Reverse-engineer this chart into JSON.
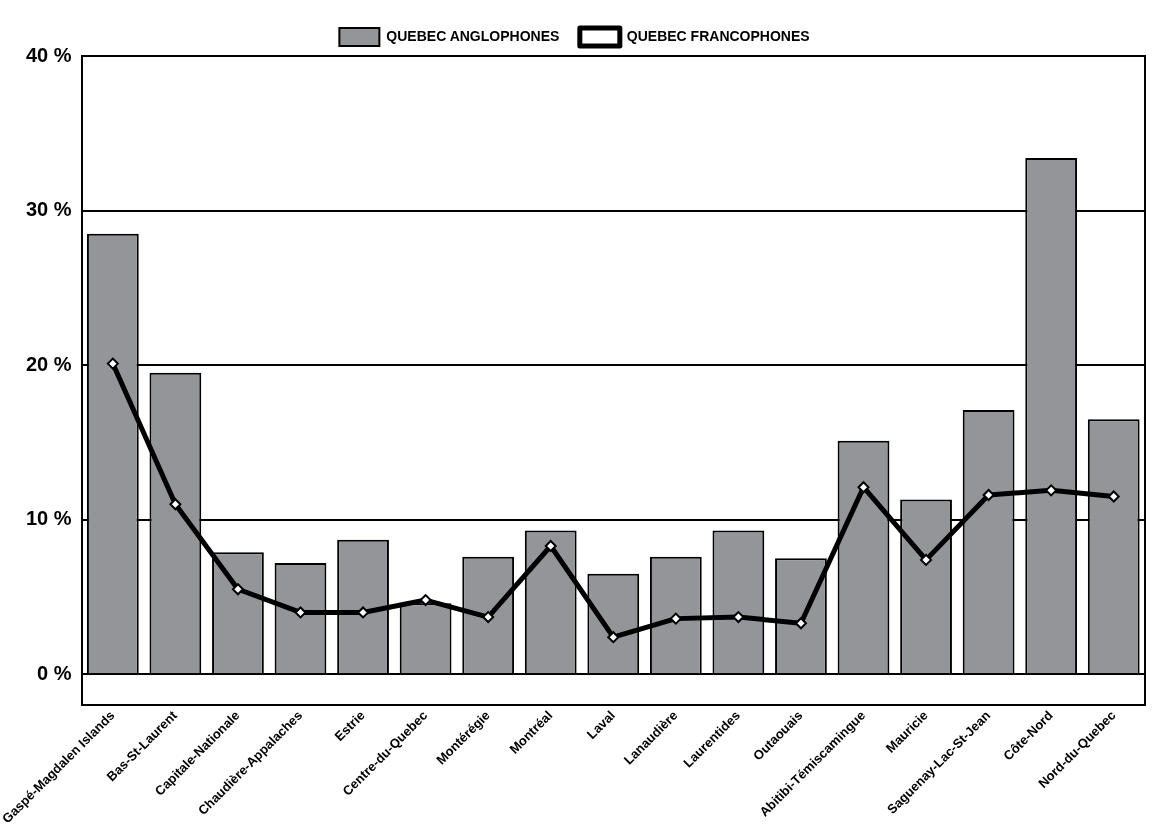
{
  "chart_data": {
    "type": "bar",
    "categories": [
      "Gaspé-Magdalen Islands",
      "Bas-St-Laurent",
      "Capitale-Nationale",
      "Chaudière-Appalaches",
      "Estrie",
      "Centre-du-Quebec",
      "Montérégie",
      "Montréal",
      "Laval",
      "Lanaudière",
      "Laurentides",
      "Outaouais",
      "Abitibi-Témiscamingue",
      "Mauricie",
      "Saguenay-Lac-St-Jean",
      "Côte-Nord",
      "Nord-du-Quebec"
    ],
    "series": [
      {
        "name": "QUEBEC ANGLOPHONES",
        "color": "#939598",
        "values": [
          28.5,
          19.5,
          7.9,
          7.2,
          8.7,
          4.6,
          7.6,
          9.3,
          6.5,
          7.6,
          9.3,
          7.5,
          15.1,
          11.3,
          17.1,
          33.4,
          16.5
        ]
      },
      {
        "name": "QUEBEC FRANCOPHONES",
        "type": "line",
        "color": "#000000",
        "marker": "diamond",
        "line_style": "solid",
        "values": [
          20.1,
          11.0,
          5.5,
          4.0,
          4.0,
          4.8,
          3.7,
          8.3,
          2.4,
          3.6,
          3.7,
          3.3,
          12.1,
          7.4,
          11.6,
          11.9,
          11.5
        ]
      }
    ],
    "ylim": [
      -2,
      40
    ],
    "yticks": [
      {
        "value": 0,
        "label": "0 %"
      },
      {
        "value": 10,
        "label": "10 %"
      },
      {
        "value": 20,
        "label": "20 %"
      },
      {
        "value": 30,
        "label": "30 %"
      },
      {
        "value": 40,
        "label": "40 %"
      }
    ],
    "grid": "y",
    "legend": "top"
  }
}
